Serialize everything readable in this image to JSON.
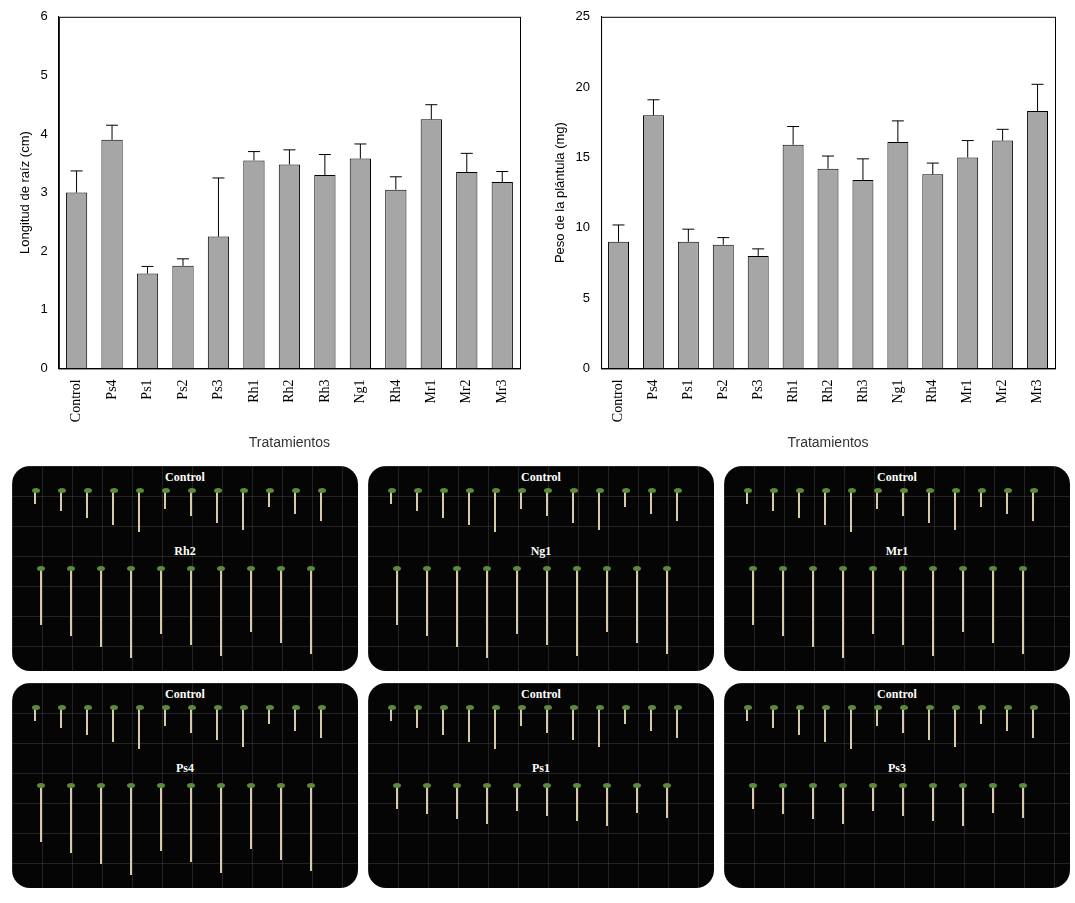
{
  "chart_data": [
    {
      "type": "bar",
      "y_label": "Longitud de raíz (cm)",
      "x_label": "Tratamientos",
      "categories": [
        "Control",
        "Ps4",
        "Ps1",
        "Ps2",
        "Ps3",
        "Rh1",
        "Rh2",
        "Rh3",
        "Ng1",
        "Rh4",
        "Mr1",
        "Mr2",
        "Mr3"
      ],
      "values": [
        3.0,
        3.9,
        1.62,
        1.75,
        2.25,
        3.55,
        3.48,
        3.3,
        3.58,
        3.05,
        4.25,
        3.35,
        3.18
      ],
      "errors": [
        0.37,
        0.25,
        0.12,
        0.12,
        1.0,
        0.15,
        0.25,
        0.35,
        0.25,
        0.22,
        0.25,
        0.32,
        0.18
      ],
      "color": "#a6a6a6",
      "ylim": [
        0,
        6
      ],
      "yticks": [
        0,
        1,
        2,
        3,
        4,
        5,
        6
      ],
      "grid": false
    },
    {
      "type": "bar",
      "y_label": "Peso de la plántula (mg)",
      "x_label": "Tratamientos",
      "categories": [
        "Control",
        "Ps4",
        "Ps1",
        "Ps2",
        "Ps3",
        "Rh1",
        "Rh2",
        "Rh3",
        "Ng1",
        "Rh4",
        "Mr1",
        "Mr2",
        "Mr3"
      ],
      "values": [
        9.0,
        18.0,
        9.0,
        8.8,
        8.0,
        15.9,
        14.2,
        13.4,
        16.1,
        13.8,
        15.0,
        16.2,
        18.3
      ],
      "errors": [
        1.2,
        1.1,
        0.9,
        0.5,
        0.5,
        1.3,
        0.9,
        1.5,
        1.5,
        0.8,
        1.2,
        0.8,
        1.9
      ],
      "color": "#a6a6a6",
      "ylim": [
        0,
        25
      ],
      "yticks": [
        0,
        5,
        10,
        15,
        20,
        25
      ],
      "grid": false
    }
  ],
  "photos": [
    {
      "top": "Control",
      "bottom": "Rh2"
    },
    {
      "top": "Control",
      "bottom": "Ng1"
    },
    {
      "top": "Control",
      "bottom": "Mr1"
    },
    {
      "top": "Control",
      "bottom": "Ps4"
    },
    {
      "top": "Control",
      "bottom": "Ps1"
    },
    {
      "top": "Control",
      "bottom": "Ps3"
    }
  ]
}
